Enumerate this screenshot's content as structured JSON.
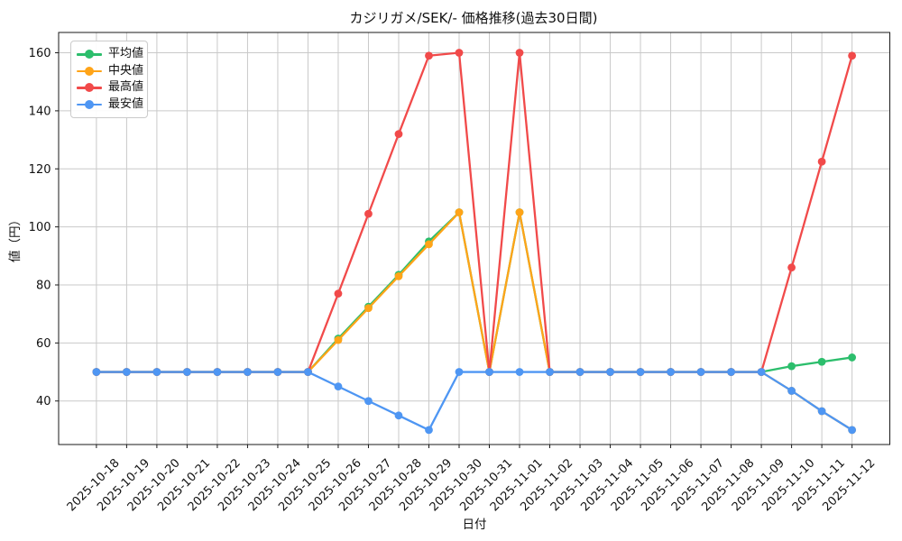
{
  "chart_data": {
    "type": "line",
    "title": "カジリガメ/SEK/- 価格推移(過去30日間)",
    "xlabel": "日付",
    "ylabel": "値（円）",
    "grid": true,
    "legend_position": "upper left",
    "ylim": [
      25,
      167
    ],
    "yticks": [
      40,
      60,
      80,
      100,
      120,
      140,
      160
    ],
    "x": [
      "2025-10-18",
      "2025-10-19",
      "2025-10-20",
      "2025-10-21",
      "2025-10-22",
      "2025-10-23",
      "2025-10-24",
      "2025-10-25",
      "2025-10-26",
      "2025-10-27",
      "2025-10-28",
      "2025-10-29",
      "2025-10-30",
      "2025-10-31",
      "2025-11-01",
      "2025-11-02",
      "2025-11-03",
      "2025-11-04",
      "2025-11-05",
      "2025-11-06",
      "2025-11-07",
      "2025-11-08",
      "2025-11-09",
      "2025-11-10",
      "2025-11-11",
      "2025-11-12"
    ],
    "series": [
      {
        "id": "mean",
        "name": "平均値",
        "color": "#2cbe6c",
        "values": [
          50,
          50,
          50,
          50,
          50,
          50,
          50,
          50,
          61.5,
          72.5,
          83.5,
          95,
          105,
          50,
          105,
          50,
          50,
          50,
          50,
          50,
          50,
          50,
          50,
          52,
          53.5,
          55
        ]
      },
      {
        "id": "median",
        "name": "中央値",
        "color": "#ffa418",
        "values": [
          50,
          50,
          50,
          50,
          50,
          50,
          50,
          50,
          61,
          72,
          83,
          94,
          105,
          50,
          105,
          50,
          50,
          50,
          50,
          50,
          50,
          50,
          50,
          43.5,
          36.5,
          30
        ]
      },
      {
        "id": "max",
        "name": "最高値",
        "color": "#f14a4a",
        "values": [
          50,
          50,
          50,
          50,
          50,
          50,
          50,
          50,
          77,
          104.5,
          132,
          159,
          160,
          50,
          160,
          50,
          50,
          50,
          50,
          50,
          50,
          50,
          50,
          86,
          122.5,
          159
        ]
      },
      {
        "id": "min",
        "name": "最安値",
        "color": "#4e96f3",
        "values": [
          50,
          50,
          50,
          50,
          50,
          50,
          50,
          50,
          45,
          40,
          35,
          30,
          50,
          50,
          50,
          50,
          50,
          50,
          50,
          50,
          50,
          50,
          50,
          43.5,
          36.5,
          30
        ]
      }
    ]
  }
}
